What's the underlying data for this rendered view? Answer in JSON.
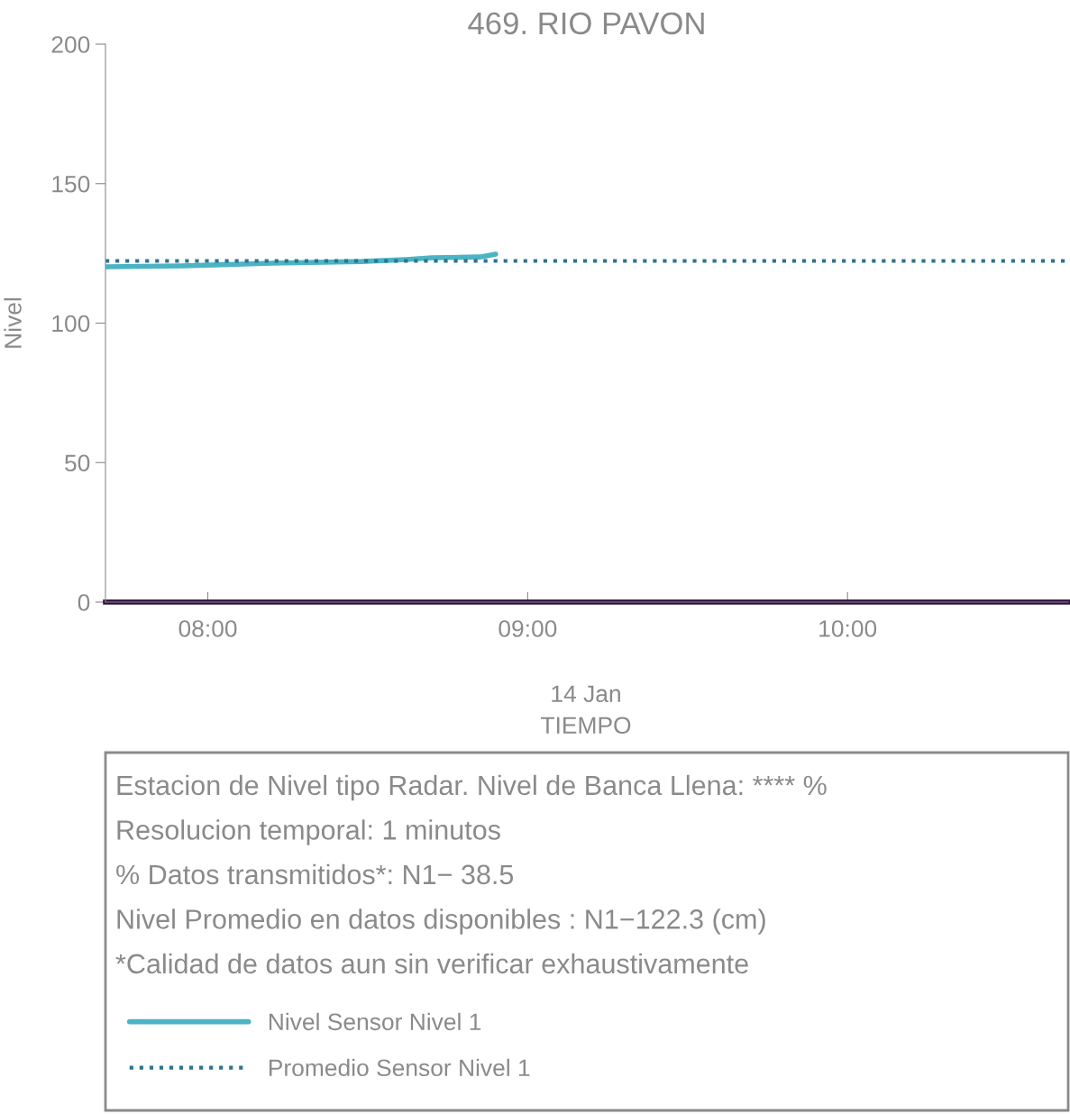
{
  "chart_data": {
    "type": "line",
    "title": "469. RIO PAVON",
    "xlabel": "TIEMPO",
    "ylabel": "Nivel",
    "xlim": [
      7.68,
      10.69
    ],
    "xticks": [
      {
        "value": 8,
        "label": "08:00"
      },
      {
        "value": 9,
        "label": "09:00"
      },
      {
        "value": 10,
        "label": "10:00"
      }
    ],
    "ylim": [
      0,
      200
    ],
    "yticks": [
      0,
      50,
      100,
      150,
      200
    ],
    "grid": false,
    "legend": "bottom",
    "series": [
      {
        "name": "Nivel Sensor Nivel 1",
        "color": "#4bb3c4",
        "line_style": "solid",
        "x": [
          7.68,
          7.92,
          8.2,
          8.48,
          8.62,
          8.7,
          8.85,
          8.9
        ],
        "values": [
          120.2,
          120.5,
          121.5,
          122.1,
          122.8,
          123.4,
          123.7,
          124.7
        ]
      },
      {
        "name": "Promedio Sensor Nivel 1",
        "color": "#2a7490",
        "line_style": "dotted",
        "x": [
          7.68,
          10.69
        ],
        "values": [
          122.3,
          122.3
        ]
      }
    ],
    "ref_lines": [
      {
        "axis": "y",
        "value": 0,
        "color": "#2d0a3d",
        "line_style": "solid"
      }
    ],
    "annotations": [
      "14 Jan",
      "Estacion de Nivel tipo Radar. Nivel de Banca Llena: **** %",
      "Resolucion temporal: 1 minutos",
      "% Datos transmitidos*: N1− 38.5",
      "Nivel Promedio en datos disponibles : N1−122.3 (cm)",
      "*Calidad de datos aun sin verificar exhaustivamente"
    ]
  }
}
